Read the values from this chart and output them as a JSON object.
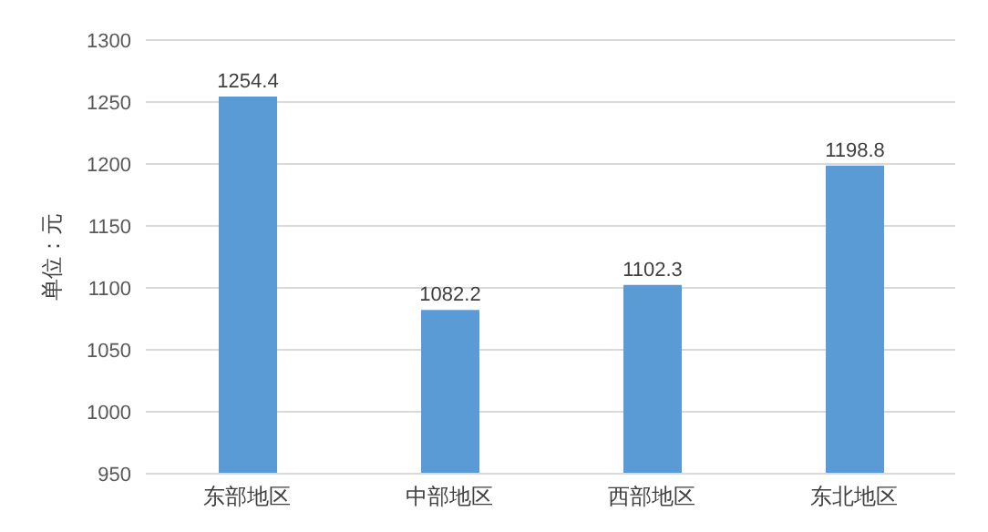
{
  "chart_data": {
    "type": "bar",
    "ylabel": "单位：元",
    "categories": [
      "东部地区",
      "中部地区",
      "西部地区",
      "东北地区"
    ],
    "values": [
      1254.4,
      1082.2,
      1102.3,
      1198.8
    ],
    "color": "#5b9bd5",
    "ylim": [
      950,
      1300
    ],
    "yticks": [
      950,
      1000,
      1050,
      1100,
      1150,
      1200,
      1250,
      1300
    ],
    "grid": "y",
    "data_labels": true
  }
}
